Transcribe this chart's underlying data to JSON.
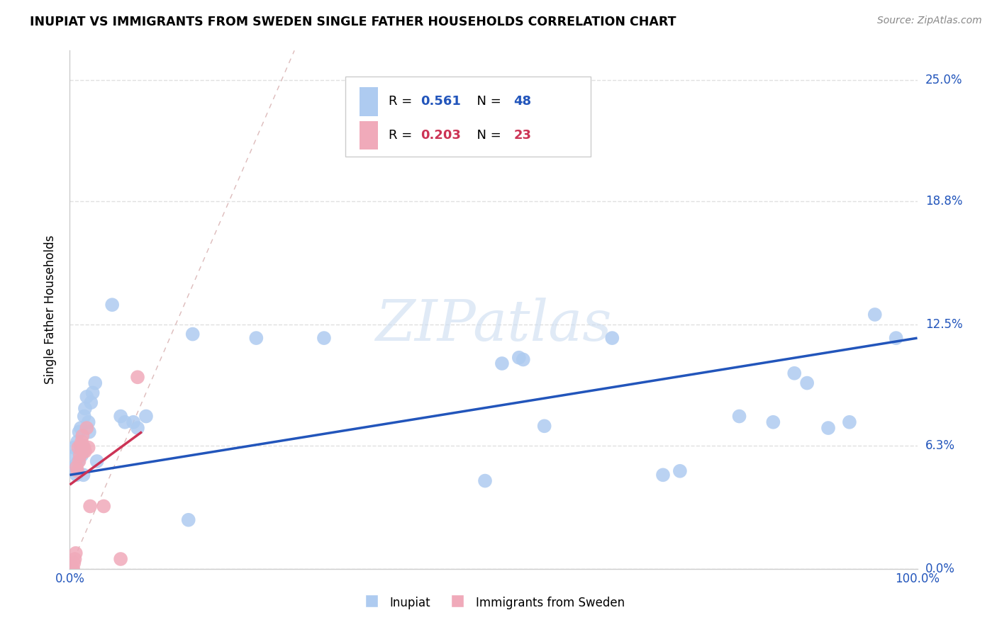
{
  "title": "INUPIAT VS IMMIGRANTS FROM SWEDEN SINGLE FATHER HOUSEHOLDS CORRELATION CHART",
  "source": "Source: ZipAtlas.com",
  "ylabel": "Single Father Households",
  "ytick_labels": [
    "0.0%",
    "6.3%",
    "12.5%",
    "18.8%",
    "25.0%"
  ],
  "ytick_values": [
    0.0,
    0.063,
    0.125,
    0.188,
    0.25
  ],
  "xlim": [
    0.0,
    1.0
  ],
  "ylim": [
    0.0,
    0.265
  ],
  "color_inupiat": "#aecbf0",
  "color_sweden": "#f0aaba",
  "line_color_inupiat": "#2255bb",
  "line_color_sweden": "#cc3355",
  "diagonal_color": "#ddbbbb",
  "inupiat_x": [
    0.004,
    0.005,
    0.006,
    0.007,
    0.008,
    0.009,
    0.01,
    0.011,
    0.012,
    0.013,
    0.014,
    0.015,
    0.016,
    0.017,
    0.018,
    0.02,
    0.022,
    0.023,
    0.025,
    0.027,
    0.03,
    0.032,
    0.05,
    0.06,
    0.065,
    0.075,
    0.08,
    0.09,
    0.14,
    0.145,
    0.22,
    0.3,
    0.49,
    0.51,
    0.53,
    0.535,
    0.56,
    0.64,
    0.7,
    0.72,
    0.79,
    0.83,
    0.855,
    0.87,
    0.895,
    0.92,
    0.95,
    0.975
  ],
  "inupiat_y": [
    0.052,
    0.062,
    0.058,
    0.053,
    0.048,
    0.065,
    0.055,
    0.07,
    0.058,
    0.072,
    0.058,
    0.063,
    0.048,
    0.078,
    0.082,
    0.088,
    0.075,
    0.07,
    0.085,
    0.09,
    0.095,
    0.055,
    0.135,
    0.078,
    0.075,
    0.075,
    0.072,
    0.078,
    0.025,
    0.12,
    0.118,
    0.118,
    0.045,
    0.105,
    0.108,
    0.107,
    0.073,
    0.118,
    0.048,
    0.05,
    0.078,
    0.075,
    0.1,
    0.095,
    0.072,
    0.075,
    0.13,
    0.118
  ],
  "sweden_x": [
    0.002,
    0.003,
    0.004,
    0.005,
    0.006,
    0.007,
    0.008,
    0.009,
    0.01,
    0.011,
    0.012,
    0.013,
    0.014,
    0.015,
    0.016,
    0.017,
    0.018,
    0.02,
    0.022,
    0.024,
    0.04,
    0.06,
    0.08
  ],
  "sweden_y": [
    0.002,
    0.0,
    0.0,
    0.003,
    0.005,
    0.008,
    0.052,
    0.05,
    0.062,
    0.055,
    0.058,
    0.063,
    0.065,
    0.068,
    0.06,
    0.062,
    0.06,
    0.072,
    0.062,
    0.032,
    0.032,
    0.005,
    0.098
  ],
  "inupiat_line_x": [
    0.0,
    1.0
  ],
  "inupiat_line_y": [
    0.048,
    0.118
  ],
  "sweden_line_x": [
    0.0,
    0.085
  ],
  "sweden_line_y": [
    0.043,
    0.07
  ],
  "background_color": "#ffffff",
  "grid_color": "#e0e0e0",
  "watermark": "ZIPatlas"
}
